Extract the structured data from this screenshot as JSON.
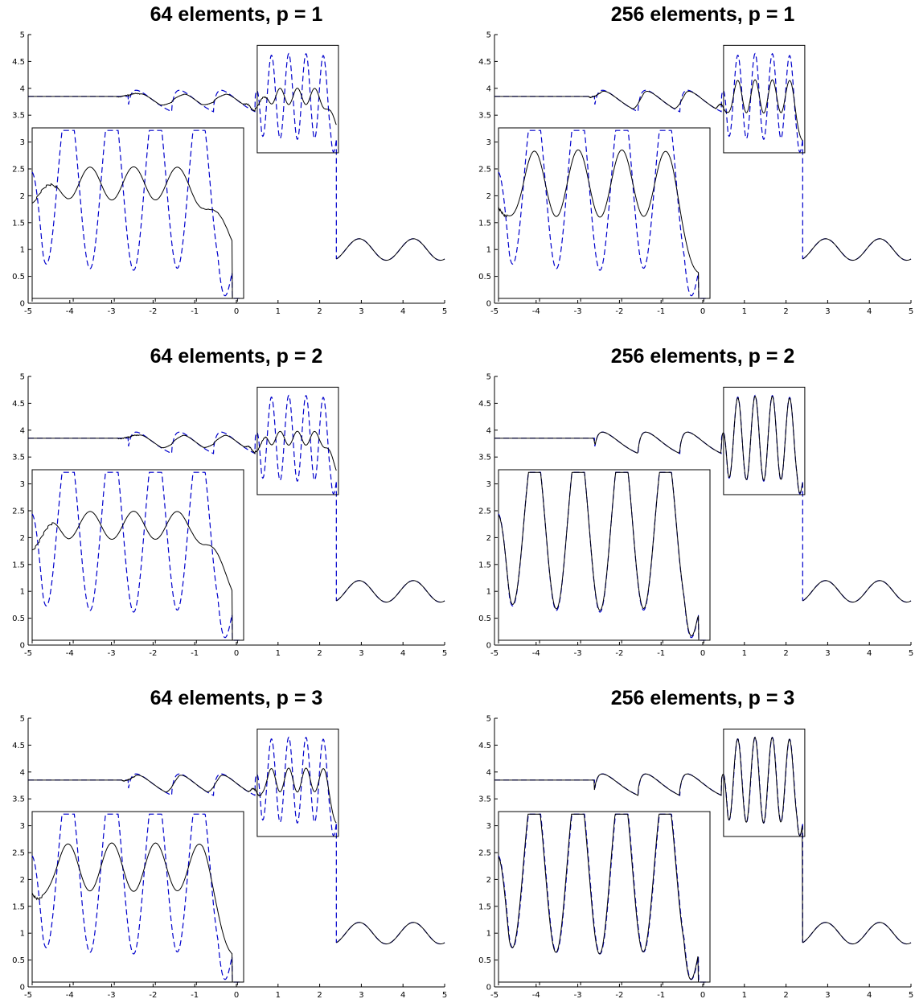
{
  "chart_data": [
    {
      "type": "line",
      "title": "64 elements, p = 1",
      "xlim": [
        -5,
        5
      ],
      "ylim": [
        0,
        5
      ],
      "xticks": [
        "-5",
        "-4",
        "-3",
        "-2",
        "-1",
        "0",
        "1",
        "2",
        "3",
        "4",
        "5"
      ],
      "yticks": [
        "0",
        "0.5",
        "1",
        "1.5",
        "2",
        "2.5",
        "3",
        "3.5",
        "4",
        "4.5",
        "5"
      ],
      "series": [
        {
          "style": "dashed",
          "color": "#0000cc"
        },
        {
          "style": "solid",
          "color": "#000000",
          "smear": 0.85
        }
      ],
      "inset": {
        "xticks": [
          "-5",
          "-4",
          "-3",
          "-2",
          "-1",
          "0"
        ],
        "zoom_box": {
          "x": [
            0.5,
            2.45
          ],
          "y": [
            2.8,
            4.8
          ]
        }
      }
    },
    {
      "type": "line",
      "title": "256 elements, p = 1",
      "xlim": [
        -5,
        5
      ],
      "ylim": [
        0,
        5
      ],
      "xticks": [
        "-5",
        "-4",
        "-3",
        "-2",
        "-1",
        "0",
        "1",
        "2",
        "3",
        "4",
        "5"
      ],
      "yticks": [
        "0",
        "0.5",
        "1",
        "1.5",
        "2",
        "2.5",
        "3",
        "3.5",
        "4",
        "4.5",
        "5"
      ],
      "series": [
        {
          "style": "dashed",
          "color": "#0000cc"
        },
        {
          "style": "solid",
          "color": "#000000",
          "smear": 0.4
        }
      ],
      "inset": {
        "xticks": [
          "-5",
          "-4",
          "-3",
          "-2",
          "-1",
          "0"
        ],
        "zoom_box": {
          "x": [
            0.5,
            2.45
          ],
          "y": [
            2.8,
            4.8
          ]
        }
      }
    },
    {
      "type": "line",
      "title": "64 elements, p = 2",
      "xlim": [
        -5,
        5
      ],
      "ylim": [
        0,
        5
      ],
      "xticks": [
        "-5",
        "-4",
        "-3",
        "-2",
        "-1",
        "0",
        "1",
        "2",
        "3",
        "4",
        "5"
      ],
      "yticks": [
        "0",
        "0.5",
        "1",
        "1.5",
        "2",
        "2.5",
        "3",
        "3.5",
        "4",
        "4.5",
        "5"
      ],
      "series": [
        {
          "style": "dashed",
          "color": "#0000cc"
        },
        {
          "style": "solid",
          "color": "#000000",
          "smear": 0.75
        }
      ],
      "inset": {
        "xticks": [
          "-5",
          "-4",
          "-3",
          "-2",
          "-1",
          "0"
        ],
        "zoom_box": {
          "x": [
            0.5,
            2.45
          ],
          "y": [
            2.8,
            4.8
          ]
        }
      }
    },
    {
      "type": "line",
      "title": "256 elements, p = 2",
      "xlim": [
        -5,
        5
      ],
      "ylim": [
        0,
        5
      ],
      "xticks": [
        "-5",
        "-4",
        "-3",
        "-2",
        "-1",
        "0",
        "1",
        "2",
        "3",
        "4",
        "5"
      ],
      "yticks": [
        "0",
        "0.5",
        "1",
        "1.5",
        "2",
        "2.5",
        "3",
        "3.5",
        "4",
        "4.5",
        "5"
      ],
      "series": [
        {
          "style": "dashed",
          "color": "#0000cc"
        },
        {
          "style": "solid",
          "color": "#000000",
          "smear": 0.05
        }
      ],
      "inset": {
        "xticks": [
          "-5",
          "-4",
          "-3",
          "-2",
          "-1",
          "0"
        ],
        "zoom_box": {
          "x": [
            0.5,
            2.45
          ],
          "y": [
            2.8,
            4.8
          ]
        }
      }
    },
    {
      "type": "line",
      "title": "64 elements, p = 3",
      "xlim": [
        -5,
        5
      ],
      "ylim": [
        0,
        5
      ],
      "xticks": [
        "-5",
        "-4",
        "-3",
        "-2",
        "-1",
        "0",
        "1",
        "2",
        "3",
        "4",
        "5"
      ],
      "yticks": [
        "0",
        "0.5",
        "1",
        "1.5",
        "2",
        "2.5",
        "3",
        "3.5",
        "4",
        "4.5",
        "5"
      ],
      "series": [
        {
          "style": "dashed",
          "color": "#0000cc"
        },
        {
          "style": "solid",
          "color": "#000000",
          "smear": 0.45
        }
      ],
      "inset": {
        "xticks": [
          "-5",
          "-4",
          "-3",
          "-2",
          "-1",
          "0"
        ],
        "zoom_box": {
          "x": [
            0.5,
            2.45
          ],
          "y": [
            2.8,
            4.8
          ]
        }
      }
    },
    {
      "type": "line",
      "title": "256 elements, p = 3",
      "xlim": [
        -5,
        5
      ],
      "ylim": [
        0,
        5
      ],
      "xticks": [
        "-5",
        "-4",
        "-3",
        "-2",
        "-1",
        "0",
        "1",
        "2",
        "3",
        "4",
        "5"
      ],
      "yticks": [
        "0",
        "0.5",
        "1",
        "1.5",
        "2",
        "2.5",
        "3",
        "3.5",
        "4",
        "4.5",
        "5"
      ],
      "series": [
        {
          "style": "dashed",
          "color": "#0000cc"
        },
        {
          "style": "solid",
          "color": "#000000",
          "smear": 0.02
        }
      ],
      "inset": {
        "xticks": [
          "-5",
          "-4",
          "-3",
          "-2",
          "-1",
          "0"
        ],
        "zoom_box": {
          "x": [
            0.5,
            2.45
          ],
          "y": [
            2.8,
            4.8
          ]
        }
      }
    }
  ]
}
